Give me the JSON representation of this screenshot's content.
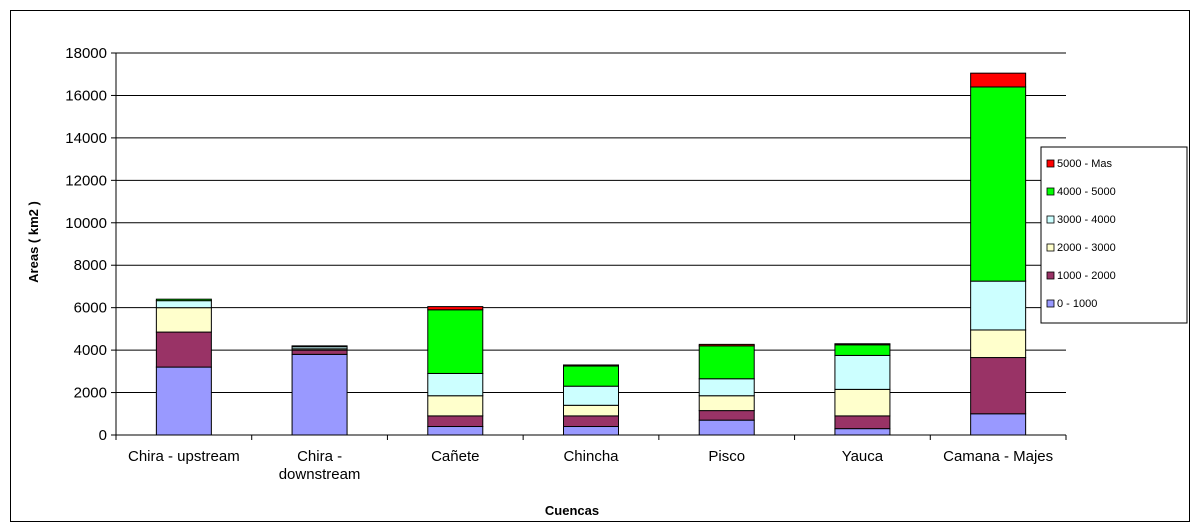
{
  "chart_data": {
    "type": "bar",
    "stacked": true,
    "title": "",
    "xlabel": "Cuencas",
    "ylabel": "Areas ( km2 )",
    "ylim": [
      0,
      18000
    ],
    "yticks": [
      0,
      2000,
      4000,
      6000,
      8000,
      10000,
      12000,
      14000,
      16000,
      18000
    ],
    "grid": true,
    "legend_position": "right",
    "categories": [
      [
        "Chira - upstream"
      ],
      [
        "Chira -",
        "downstream"
      ],
      [
        "Cañete"
      ],
      [
        "Chincha"
      ],
      [
        "Pisco"
      ],
      [
        "Yauca"
      ],
      [
        "Camana - Majes"
      ]
    ],
    "series": [
      {
        "name": "0 - 1000",
        "color": "#9999ff",
        "values": [
          3200,
          3800,
          400,
          400,
          700,
          300,
          1000
        ]
      },
      {
        "name": "1000 - 2000",
        "color": "#993366",
        "values": [
          1650,
          200,
          500,
          500,
          450,
          600,
          2650
        ]
      },
      {
        "name": "2000 - 3000",
        "color": "#ffffcc",
        "values": [
          1150,
          60,
          950,
          500,
          700,
          1250,
          1300
        ]
      },
      {
        "name": "3000 - 4000",
        "color": "#ccffff",
        "values": [
          330,
          100,
          1050,
          900,
          800,
          1600,
          2300
        ]
      },
      {
        "name": "4000 - 5000",
        "color": "#00ff00",
        "values": [
          70,
          40,
          3000,
          950,
          1550,
          500,
          9150
        ]
      },
      {
        "name": "5000 - Mas",
        "color": "#ff0000",
        "values": [
          0,
          0,
          150,
          50,
          70,
          50,
          650
        ]
      }
    ]
  }
}
